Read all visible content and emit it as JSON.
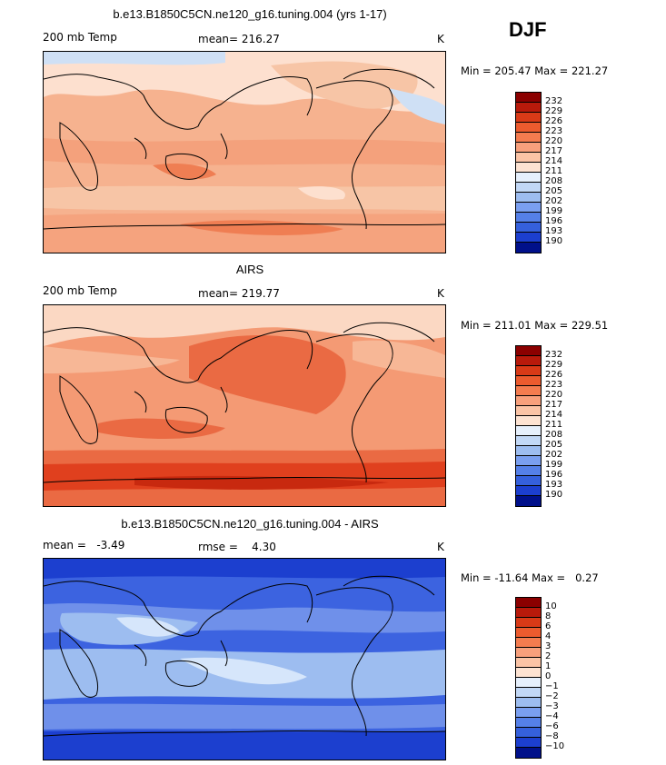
{
  "season": "DJF",
  "panels": [
    {
      "title": "b.e13.B1850C5CN.ne120_g16.tuning.004 (yrs 1-17)",
      "left_label": "200 mb Temp",
      "mid_label": "mean= 216.27",
      "units": "K",
      "minmax": "Min = 205.47 Max = 221.27",
      "colors": {
        "base": "#f6b28f",
        "band1": "#fde0cf",
        "band2": "#f3946e",
        "band3": "#f7c5a6",
        "band4": "#cfe0f5"
      }
    },
    {
      "title": "AIRS",
      "left_label": "200 mb Temp",
      "mid_label": "mean= 219.77",
      "units": "K",
      "minmax": "Min = 211.01 Max = 229.51",
      "colors": {
        "base": "#f49a74",
        "band1": "#fbd8c3",
        "band2": "#ea6a43",
        "band3": "#e0401e",
        "band4": "#f7b796"
      }
    },
    {
      "title": "b.e13.B1850C5CN.ne120_g16.tuning.004 - AIRS",
      "left_label": "mean =   -3.49",
      "mid_label": "rmse =    4.30",
      "units": "K",
      "minmax": "Min = -11.64 Max =   0.27",
      "colors": {
        "base": "#3c63e0",
        "band1": "#9dbdf0",
        "band2": "#1c3fcf",
        "band3": "#d6e6fb",
        "band4": "#6f90ea"
      }
    }
  ],
  "colorbar_colors": [
    "#8b0000",
    "#b81a0b",
    "#d93a17",
    "#ec5b2e",
    "#f47c4f",
    "#f8a07c",
    "#fbc4a6",
    "#fde3d2",
    "#e6f0fc",
    "#c2d8f6",
    "#9dbdf0",
    "#7a9ff0",
    "#5580e8",
    "#3560dc",
    "#1c3fcf",
    "#0a22aa",
    "#00108a"
  ],
  "colorbar_ticks": [
    [
      "232",
      "229",
      "226",
      "223",
      "220",
      "217",
      "214",
      "211",
      "208",
      "205",
      "202",
      "199",
      "196",
      "193",
      "190"
    ],
    [
      "232",
      "229",
      "226",
      "223",
      "220",
      "217",
      "214",
      "211",
      "208",
      "205",
      "202",
      "199",
      "196",
      "193",
      "190"
    ],
    [
      "10",
      "8",
      "6",
      "4",
      "3",
      "2",
      "1",
      "0",
      "−1",
      "−2",
      "−3",
      "−4",
      "−6",
      "−8",
      "−10"
    ]
  ]
}
